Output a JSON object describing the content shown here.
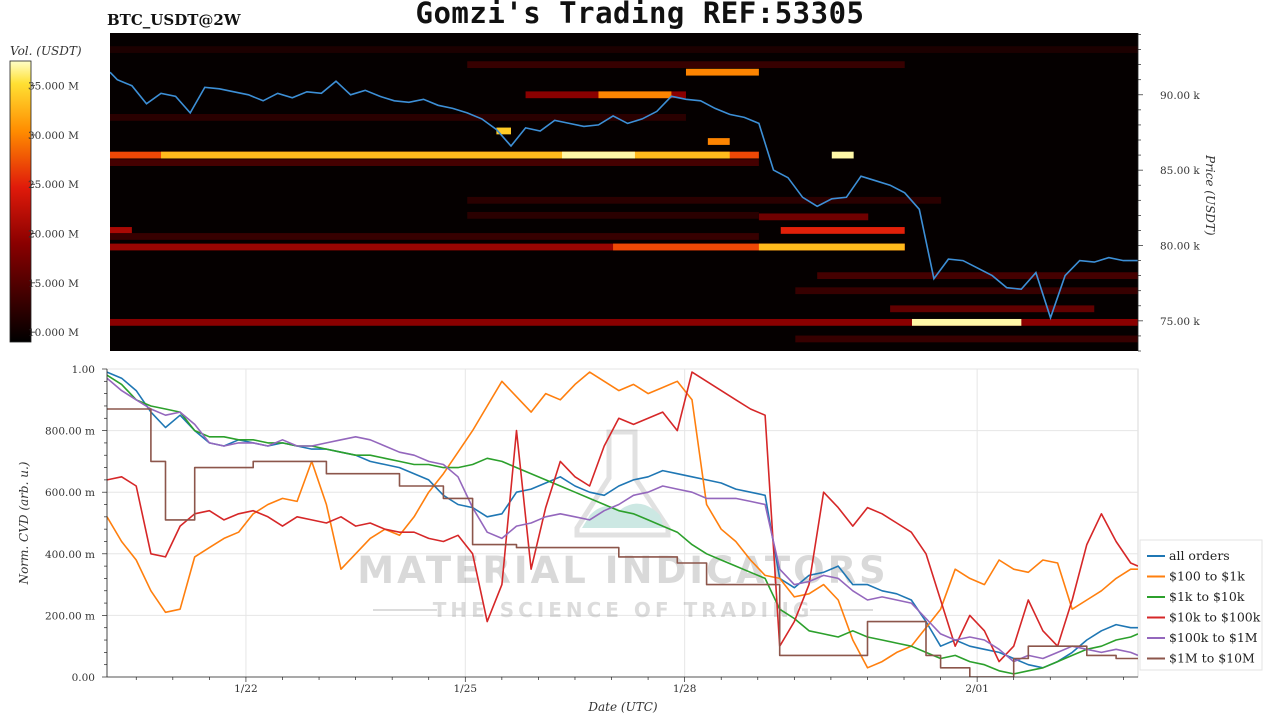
{
  "header": {
    "title": "Gomzi's Trading REF:53305",
    "pair": "BTC_USDT@2W"
  },
  "watermark": {
    "line1": "MATERIAL INDICATORS",
    "line2": "THE SCIENCE OF TRADING"
  },
  "colors": {
    "price_line": "#3d8fd6",
    "series": [
      "#1f77b4",
      "#ff7f0e",
      "#2ca02c",
      "#d62728",
      "#9467bd",
      "#8c564b"
    ]
  },
  "chart_data": [
    {
      "type": "heatmap",
      "title": "BTC_USDT@2W",
      "colorbar": {
        "label": "Vol. (USDT)",
        "ticks": [
          "35.000 M",
          "30.000 M",
          "25.000 M",
          "20.000 M",
          "15.000 M",
          "10.000 M"
        ],
        "values": [
          35,
          30,
          25,
          20,
          15,
          10
        ],
        "range": [
          9,
          37.5
        ],
        "unit": "M USDT"
      },
      "ylabel": "Price (USDT)",
      "yticks": [
        "90.00 k",
        "85.00 k",
        "80.00 k",
        "75.00 k"
      ],
      "ytick_values": [
        90,
        85,
        80,
        75
      ],
      "ylim": [
        73.0,
        94.1
      ],
      "xlim": [
        20.1,
        34.2
      ],
      "price_series": {
        "x": [
          20.1,
          20.2,
          20.4,
          20.6,
          20.8,
          21.0,
          21.2,
          21.4,
          21.6,
          21.8,
          22.0,
          22.2,
          22.4,
          22.6,
          22.8,
          23.0,
          23.2,
          23.4,
          23.6,
          23.8,
          24.0,
          24.2,
          24.4,
          24.6,
          24.8,
          25.0,
          25.2,
          25.4,
          25.6,
          25.8,
          26.0,
          26.2,
          26.4,
          26.6,
          26.8,
          27.0,
          27.2,
          27.4,
          27.6,
          27.8,
          28.0,
          28.2,
          28.4,
          28.6,
          28.8,
          29.0,
          29.2,
          29.4,
          29.6,
          29.8,
          30.0,
          30.2,
          30.4,
          30.6,
          30.8,
          31.0,
          31.2,
          31.4,
          31.6,
          31.8,
          32.0,
          32.2,
          32.4,
          32.6,
          32.8,
          33.0,
          33.2,
          33.4,
          33.6,
          33.8,
          34.0,
          34.2
        ],
        "y": [
          91.5,
          91.0,
          90.6,
          89.4,
          90.1,
          89.9,
          88.8,
          90.5,
          90.4,
          90.2,
          90.0,
          89.6,
          90.1,
          89.8,
          90.2,
          90.1,
          90.9,
          90.0,
          90.3,
          89.9,
          89.6,
          89.5,
          89.7,
          89.3,
          89.1,
          88.8,
          88.4,
          87.7,
          86.6,
          87.8,
          87.6,
          88.3,
          88.1,
          87.9,
          88.0,
          88.6,
          88.1,
          88.4,
          88.9,
          89.9,
          89.7,
          89.6,
          89.1,
          88.7,
          88.5,
          88.1,
          85.0,
          84.5,
          83.2,
          82.6,
          83.1,
          83.2,
          84.6,
          84.3,
          84.0,
          83.5,
          82.4,
          77.8,
          79.1,
          79.0,
          78.5,
          78.0,
          77.2,
          77.1,
          78.2,
          75.2,
          78.0,
          79.0,
          78.9,
          79.2,
          79.0,
          79.0
        ]
      },
      "bands": [
        {
          "price": 86.0,
          "x0": 20.1,
          "x1": 29.0,
          "intensity": 27
        },
        {
          "price": 86.0,
          "x0": 20.8,
          "x1": 28.6,
          "intensity": 33
        },
        {
          "price": 86.0,
          "x0": 26.3,
          "x1": 27.3,
          "intensity": 37
        },
        {
          "price": 79.9,
          "x0": 20.1,
          "x1": 31.0,
          "intensity": 20
        },
        {
          "price": 79.9,
          "x0": 27.0,
          "x1": 31.0,
          "intensity": 27
        },
        {
          "price": 79.9,
          "x0": 29.0,
          "x1": 31.0,
          "intensity": 33
        },
        {
          "price": 81.0,
          "x0": 20.1,
          "x1": 20.4,
          "intensity": 21
        },
        {
          "price": 81.0,
          "x0": 29.3,
          "x1": 31.0,
          "intensity": 25
        },
        {
          "price": 74.9,
          "x0": 20.1,
          "x1": 34.2,
          "intensity": 19
        },
        {
          "price": 74.9,
          "x0": 31.1,
          "x1": 32.6,
          "intensity": 37
        },
        {
          "price": 91.5,
          "x0": 28.0,
          "x1": 29.0,
          "intensity": 30
        },
        {
          "price": 90.0,
          "x0": 25.8,
          "x1": 28.0,
          "intensity": 19
        },
        {
          "price": 90.0,
          "x0": 26.8,
          "x1": 27.8,
          "intensity": 30
        },
        {
          "price": 86.9,
          "x0": 28.3,
          "x1": 28.6,
          "intensity": 30
        },
        {
          "price": 86.0,
          "x0": 30.0,
          "x1": 30.3,
          "intensity": 37
        },
        {
          "price": 87.6,
          "x0": 25.4,
          "x1": 25.6,
          "intensity": 34
        },
        {
          "price": 81.9,
          "x0": 29.0,
          "x1": 30.5,
          "intensity": 17
        },
        {
          "price": 78.0,
          "x0": 29.8,
          "x1": 34.2,
          "intensity": 14
        },
        {
          "price": 77.0,
          "x0": 29.5,
          "x1": 34.2,
          "intensity": 13
        },
        {
          "price": 75.8,
          "x0": 30.8,
          "x1": 33.6,
          "intensity": 16
        },
        {
          "price": 85.5,
          "x0": 20.1,
          "x1": 29.0,
          "intensity": 14
        },
        {
          "price": 88.5,
          "x0": 20.1,
          "x1": 28.0,
          "intensity": 12
        },
        {
          "price": 93.0,
          "x0": 20.1,
          "x1": 34.2,
          "intensity": 11
        },
        {
          "price": 92.0,
          "x0": 25.0,
          "x1": 31.0,
          "intensity": 13
        },
        {
          "price": 83.0,
          "x0": 25.0,
          "x1": 31.5,
          "intensity": 12
        },
        {
          "price": 82.0,
          "x0": 25.0,
          "x1": 29.0,
          "intensity": 12
        },
        {
          "price": 80.6,
          "x0": 20.1,
          "x1": 29.0,
          "intensity": 13
        },
        {
          "price": 73.8,
          "x0": 29.5,
          "x1": 34.2,
          "intensity": 13
        }
      ]
    },
    {
      "type": "line",
      "xlabel": "Date (UTC)",
      "ylabel": "Norm. CVD (arb. u.)",
      "xticks": [
        "1/22",
        "1/25",
        "1/28",
        "2/01"
      ],
      "xtick_values": [
        22,
        25,
        28,
        32
      ],
      "xlim": [
        20.1,
        34.2
      ],
      "yticks": [
        "0.00",
        "200.00 m",
        "400.00 m",
        "600.00 m",
        "800.00 m",
        "1.00"
      ],
      "ytick_values": [
        0,
        0.2,
        0.4,
        0.6,
        0.8,
        1.0
      ],
      "ylim": [
        0,
        1.0
      ],
      "grid": true,
      "legend": "right",
      "x": [
        20.1,
        20.3,
        20.5,
        20.7,
        20.9,
        21.1,
        21.3,
        21.5,
        21.7,
        21.9,
        22.1,
        22.3,
        22.5,
        22.7,
        22.9,
        23.1,
        23.3,
        23.5,
        23.7,
        23.9,
        24.1,
        24.3,
        24.5,
        24.7,
        24.9,
        25.1,
        25.3,
        25.5,
        25.7,
        25.9,
        26.1,
        26.3,
        26.5,
        26.7,
        26.9,
        27.1,
        27.3,
        27.5,
        27.7,
        27.9,
        28.1,
        28.3,
        28.5,
        28.7,
        28.9,
        29.1,
        29.3,
        29.5,
        29.7,
        29.9,
        30.1,
        30.3,
        30.5,
        30.7,
        30.9,
        31.1,
        31.3,
        31.5,
        31.7,
        31.9,
        32.1,
        32.3,
        32.5,
        32.7,
        32.9,
        33.1,
        33.3,
        33.5,
        33.7,
        33.9,
        34.1,
        34.2
      ],
      "series": [
        {
          "name": "all orders",
          "values": [
            0.99,
            0.97,
            0.93,
            0.86,
            0.81,
            0.85,
            0.8,
            0.76,
            0.75,
            0.77,
            0.76,
            0.75,
            0.76,
            0.75,
            0.74,
            0.74,
            0.73,
            0.72,
            0.7,
            0.69,
            0.68,
            0.66,
            0.64,
            0.59,
            0.56,
            0.55,
            0.52,
            0.53,
            0.6,
            0.61,
            0.63,
            0.65,
            0.62,
            0.6,
            0.59,
            0.62,
            0.64,
            0.65,
            0.67,
            0.66,
            0.65,
            0.64,
            0.63,
            0.61,
            0.6,
            0.59,
            0.32,
            0.29,
            0.33,
            0.34,
            0.36,
            0.3,
            0.3,
            0.28,
            0.27,
            0.25,
            0.18,
            0.1,
            0.12,
            0.1,
            0.09,
            0.08,
            0.06,
            0.04,
            0.03,
            0.05,
            0.08,
            0.12,
            0.15,
            0.17,
            0.16,
            0.16
          ]
        },
        {
          "name": "$100 to $1k",
          "values": [
            0.52,
            0.44,
            0.38,
            0.28,
            0.21,
            0.22,
            0.39,
            0.42,
            0.45,
            0.47,
            0.53,
            0.56,
            0.58,
            0.57,
            0.7,
            0.56,
            0.35,
            0.4,
            0.45,
            0.48,
            0.46,
            0.52,
            0.6,
            0.66,
            0.73,
            0.8,
            0.88,
            0.96,
            0.91,
            0.86,
            0.92,
            0.9,
            0.95,
            0.99,
            0.96,
            0.93,
            0.95,
            0.92,
            0.94,
            0.96,
            0.9,
            0.56,
            0.48,
            0.44,
            0.38,
            0.33,
            0.32,
            0.26,
            0.27,
            0.3,
            0.25,
            0.12,
            0.03,
            0.05,
            0.08,
            0.1,
            0.16,
            0.22,
            0.35,
            0.32,
            0.3,
            0.38,
            0.35,
            0.34,
            0.38,
            0.37,
            0.22,
            0.25,
            0.28,
            0.32,
            0.35,
            0.35
          ]
        },
        {
          "name": "$1k to $10k",
          "values": [
            0.98,
            0.95,
            0.9,
            0.88,
            0.87,
            0.86,
            0.8,
            0.78,
            0.78,
            0.77,
            0.77,
            0.76,
            0.76,
            0.75,
            0.75,
            0.74,
            0.73,
            0.72,
            0.72,
            0.71,
            0.7,
            0.69,
            0.69,
            0.68,
            0.68,
            0.69,
            0.71,
            0.7,
            0.68,
            0.66,
            0.64,
            0.62,
            0.6,
            0.58,
            0.56,
            0.54,
            0.53,
            0.51,
            0.49,
            0.47,
            0.43,
            0.4,
            0.38,
            0.36,
            0.34,
            0.32,
            0.22,
            0.19,
            0.15,
            0.14,
            0.13,
            0.15,
            0.13,
            0.12,
            0.11,
            0.1,
            0.08,
            0.06,
            0.07,
            0.05,
            0.04,
            0.02,
            0.01,
            0.02,
            0.03,
            0.05,
            0.07,
            0.09,
            0.1,
            0.12,
            0.13,
            0.14
          ]
        },
        {
          "name": "$10k to $100k",
          "values": [
            0.64,
            0.65,
            0.62,
            0.4,
            0.39,
            0.49,
            0.53,
            0.54,
            0.51,
            0.53,
            0.54,
            0.52,
            0.49,
            0.52,
            0.51,
            0.5,
            0.52,
            0.49,
            0.5,
            0.48,
            0.47,
            0.47,
            0.45,
            0.44,
            0.46,
            0.4,
            0.18,
            0.3,
            0.8,
            0.35,
            0.55,
            0.7,
            0.65,
            0.62,
            0.75,
            0.84,
            0.82,
            0.84,
            0.86,
            0.8,
            0.99,
            0.96,
            0.93,
            0.9,
            0.87,
            0.85,
            0.1,
            0.18,
            0.3,
            0.6,
            0.55,
            0.49,
            0.55,
            0.53,
            0.5,
            0.47,
            0.4,
            0.25,
            0.1,
            0.2,
            0.15,
            0.05,
            0.1,
            0.25,
            0.15,
            0.1,
            0.25,
            0.43,
            0.53,
            0.44,
            0.37,
            0.36
          ]
        },
        {
          "name": "$100k to $1M",
          "values": [
            0.97,
            0.93,
            0.9,
            0.87,
            0.85,
            0.86,
            0.82,
            0.76,
            0.75,
            0.76,
            0.76,
            0.75,
            0.77,
            0.75,
            0.75,
            0.76,
            0.77,
            0.78,
            0.77,
            0.75,
            0.73,
            0.72,
            0.7,
            0.69,
            0.65,
            0.55,
            0.47,
            0.45,
            0.49,
            0.5,
            0.52,
            0.53,
            0.52,
            0.51,
            0.54,
            0.56,
            0.59,
            0.6,
            0.62,
            0.61,
            0.6,
            0.58,
            0.58,
            0.58,
            0.57,
            0.56,
            0.35,
            0.3,
            0.31,
            0.33,
            0.32,
            0.28,
            0.25,
            0.26,
            0.25,
            0.24,
            0.19,
            0.14,
            0.12,
            0.13,
            0.12,
            0.09,
            0.05,
            0.07,
            0.06,
            0.08,
            0.1,
            0.09,
            0.08,
            0.09,
            0.08,
            0.07
          ]
        },
        {
          "name": "$1M to $10M",
          "values": [
            0.87,
            0.87,
            0.87,
            0.7,
            0.51,
            0.51,
            0.68,
            0.68,
            0.68,
            0.68,
            0.7,
            0.7,
            0.7,
            0.7,
            0.7,
            0.66,
            0.66,
            0.66,
            0.66,
            0.66,
            0.62,
            0.62,
            0.62,
            0.58,
            0.58,
            0.43,
            0.43,
            0.43,
            0.42,
            0.42,
            0.42,
            0.42,
            0.42,
            0.42,
            0.42,
            0.39,
            0.39,
            0.39,
            0.39,
            0.37,
            0.37,
            0.3,
            0.3,
            0.3,
            0.3,
            0.3,
            0.07,
            0.07,
            0.07,
            0.07,
            0.07,
            0.07,
            0.18,
            0.18,
            0.18,
            0.18,
            0.07,
            0.03,
            0.03,
            0.0,
            0.0,
            0.0,
            0.06,
            0.1,
            0.1,
            0.1,
            0.1,
            0.07,
            0.07,
            0.06,
            0.06,
            0.06
          ]
        }
      ]
    }
  ]
}
